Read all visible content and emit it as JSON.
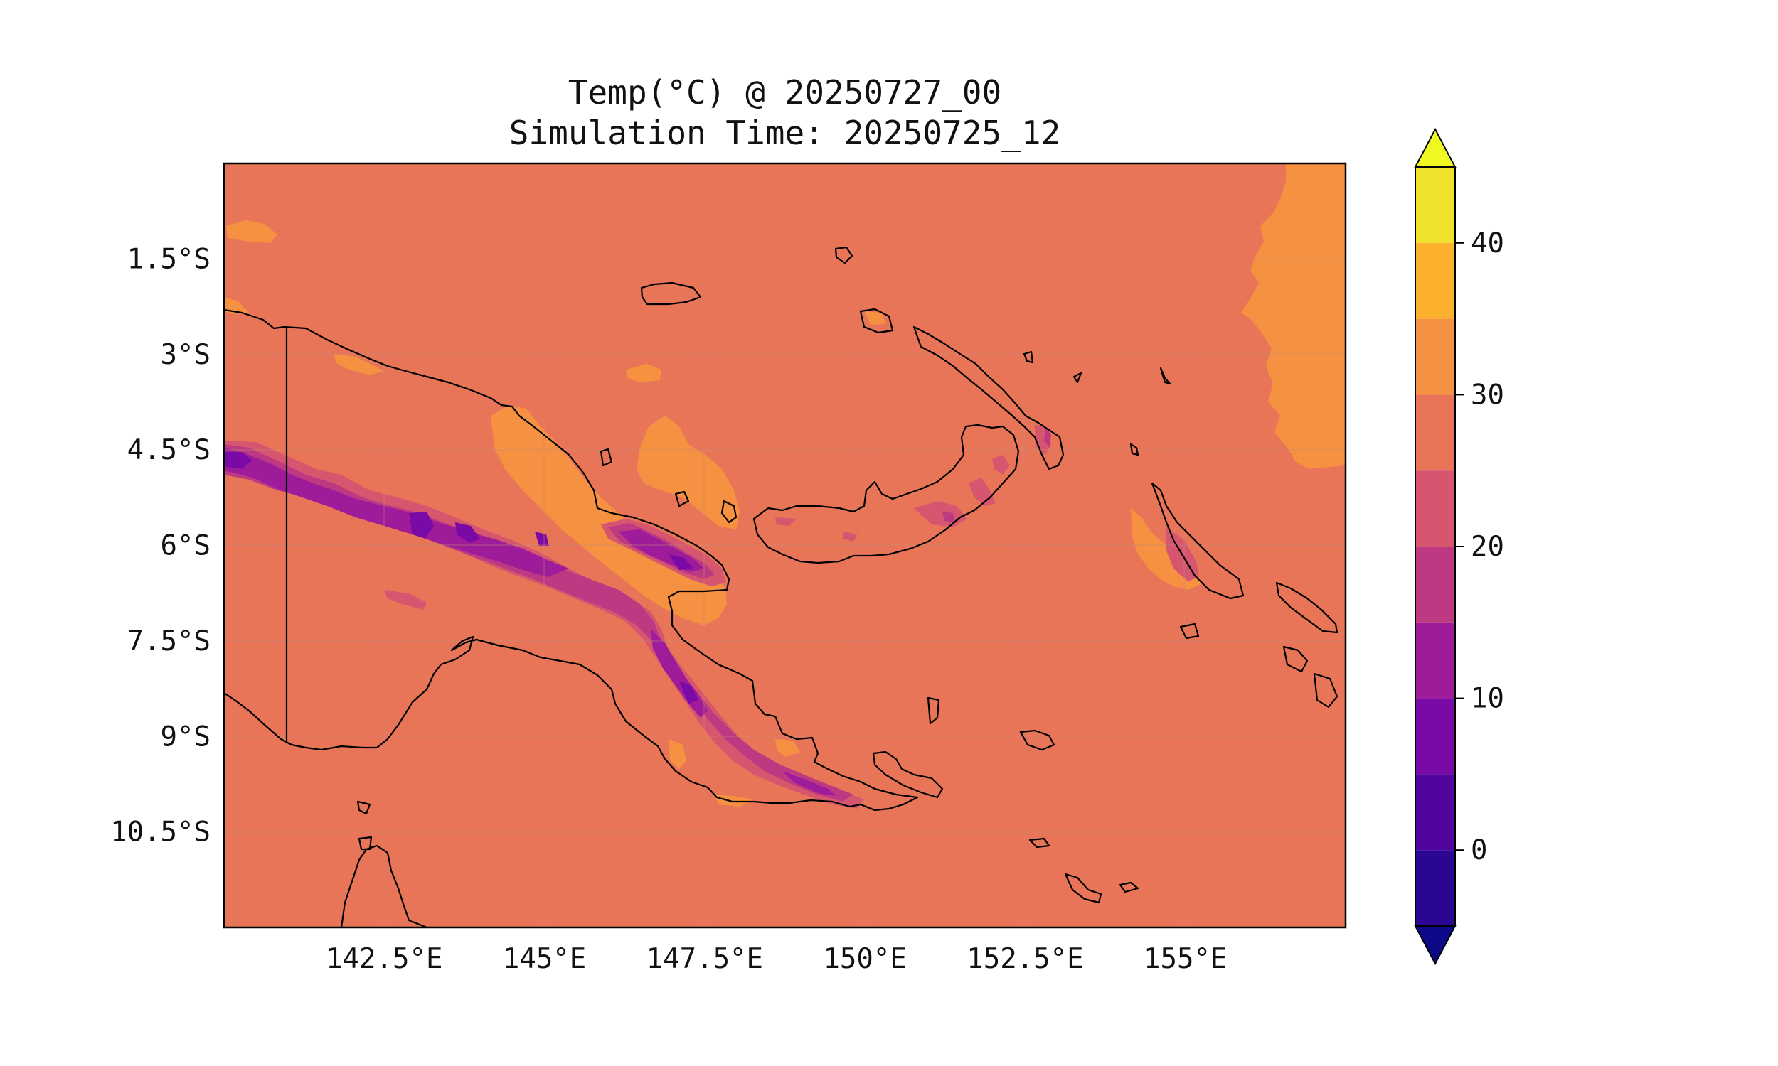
{
  "title": {
    "line1": "Temp(°C) @ 20250727_00",
    "line2": "Simulation Time: 20250725_12"
  },
  "axes": {
    "x_ticks": [
      "142.5°E",
      "145°E",
      "147.5°E",
      "150°E",
      "152.5°E",
      "155°E"
    ],
    "y_ticks": [
      "1.5°S",
      "3°S",
      "4.5°S",
      "6°S",
      "7.5°S",
      "9°S",
      "10.5°S"
    ],
    "x_tick_values": [
      142.5,
      145,
      147.5,
      150,
      152.5,
      155
    ],
    "y_tick_values": [
      -1.5,
      -3,
      -4.5,
      -6,
      -7.5,
      -9,
      -10.5
    ],
    "lon_range": [
      140.0,
      157.5
    ],
    "lat_range": [
      -12.0,
      0.0
    ],
    "grid": true
  },
  "colorbar": {
    "tick_labels": [
      "40",
      "30",
      "20",
      "10",
      "0"
    ],
    "tick_values": [
      40,
      30,
      20,
      10,
      0
    ],
    "range": [
      -5,
      45
    ],
    "extend": "both",
    "levels": [
      {
        "from": 40,
        "to": 45,
        "color": "#f0e12a"
      },
      {
        "from": 35,
        "to": 40,
        "color": "#fcb12e"
      },
      {
        "from": 30,
        "to": 35,
        "color": "#f59141"
      },
      {
        "from": 25,
        "to": 30,
        "color": "#e97558"
      },
      {
        "from": 20,
        "to": 25,
        "color": "#d5566e"
      },
      {
        "from": 15,
        "to": 20,
        "color": "#bd3a83"
      },
      {
        "from": 10,
        "to": 15,
        "color": "#9e1b9a"
      },
      {
        "from": 5,
        "to": 10,
        "color": "#7a0aa6"
      },
      {
        "from": 0,
        "to": 5,
        "color": "#52049f"
      },
      {
        "from": -5,
        "to": 0,
        "color": "#2a0693"
      }
    ],
    "over_color": "#f0f921",
    "under_color": "#0d0887"
  }
}
